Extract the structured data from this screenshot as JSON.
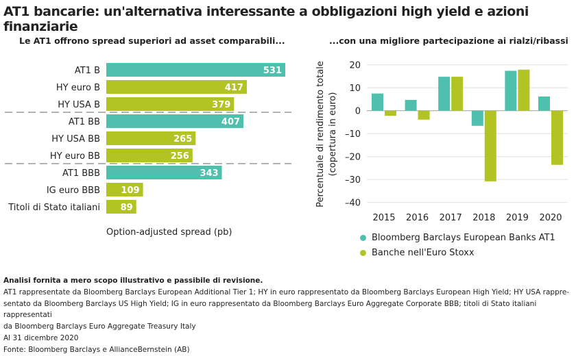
{
  "title": "AT1 bancarie: un'alternativa interessante a obbligazioni high yield e azioni finanziarie",
  "colors": {
    "teal": "#4fbfae",
    "green": "#b2c424"
  },
  "chart_data": [
    {
      "type": "bar",
      "orientation": "horizontal",
      "title": "Le AT1 offrono spread superiori ad asset comparabili...",
      "xlabel": "Option-adjusted spread (pb)",
      "categories": [
        "AT1 B",
        "HY euro B",
        "HY USA B",
        "AT1 BB",
        "HY USA BB",
        "HY euro BB",
        "AT1 BBB",
        "IG euro BBB",
        "Titoli di Stato italiani"
      ],
      "values": [
        531,
        417,
        379,
        407,
        265,
        256,
        343,
        109,
        89
      ],
      "bar_colors": [
        "teal",
        "green",
        "green",
        "teal",
        "green",
        "green",
        "teal",
        "green",
        "green"
      ],
      "data_labels": [
        "531",
        "417",
        "379",
        "407",
        "265",
        "256",
        "343",
        "109",
        "89"
      ],
      "group_separators": "dashed"
    },
    {
      "type": "bar",
      "title": "...con una migliore partecipazione ai rialzi/ribassi",
      "ylabel": "Percentuale di rendimento totale (copertura in euro)",
      "categories": [
        "2015",
        "2016",
        "2017",
        "2018",
        "2019",
        "2020"
      ],
      "ylim": [
        -40,
        20
      ],
      "yticks": [
        "20",
        "10",
        "0",
        "–10",
        "–20",
        "–30",
        "–40"
      ],
      "ytick_values": [
        20,
        10,
        0,
        -10,
        -20,
        -30,
        -40
      ],
      "grid": true,
      "legend_position": "bottom",
      "series": [
        {
          "name": "Bloomberg Barclays European Banks AT1",
          "color": "teal",
          "values": [
            7.5,
            4.7,
            14.8,
            -6.6,
            17.4,
            6.2
          ]
        },
        {
          "name": "Banche nell'Euro Stoxx",
          "color": "green",
          "values": [
            -2.2,
            -3.9,
            14.8,
            -30.8,
            17.9,
            -23.6
          ]
        }
      ]
    }
  ],
  "notes": {
    "bold": "Analisi fornita a mero scopo illustrativo e passibile di revisione.",
    "line1": "AT1 rappresentate da Bloomberg Barclays European Additional Tier 1; HY in euro rappresentato da Bloomberg Barclays European High Yield; HY USA rappre-",
    "line2": "sentato da Bloomberg Barclays US High Yield; IG in euro rappresentato da Bloomberg Barclays Euro Aggregate Corporate BBB; titoli di Stato italiani rappresentati",
    "line3": "da Bloomberg Barclays Euro Aggregate Treasury Italy",
    "date": "Al 31 dicembre 2020",
    "source": "Fonte: Bloomberg Barclays e AllianceBernstein (AB)"
  }
}
